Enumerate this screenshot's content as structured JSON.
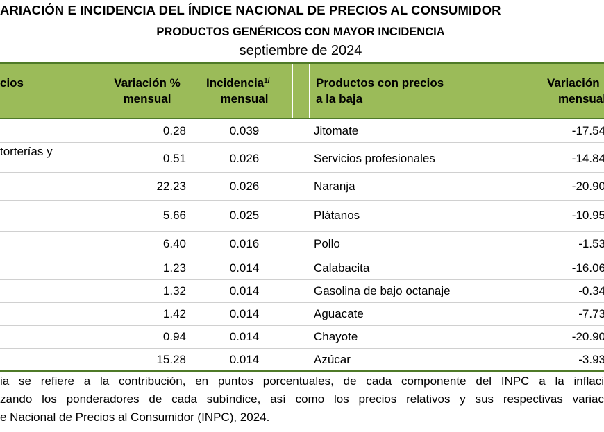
{
  "header": {
    "title": "ARIACIÓN E INCIDENCIA DEL ÍNDICE NACIONAL DE PRECIOS AL CONSUMIDOR",
    "subtitle": "PRODUCTOS GENÉRICOS CON MAYOR INCIDENCIA",
    "period": "septiembre de 2024"
  },
  "table": {
    "columns": {
      "first": "cios",
      "variacion": [
        "Variación %",
        "mensual"
      ],
      "incidencia": [
        "Incidencia",
        "mensual"
      ],
      "incidencia_note": "1/",
      "productos_baja": [
        "Productos con precios",
        "a la baja"
      ],
      "variacion_baja": [
        "Variación",
        "mensual"
      ]
    },
    "first_column_fragment": "torterías y",
    "rows": [
      [
        "0.28",
        "0.039",
        "Jitomate",
        "-17.54"
      ],
      [
        "0.51",
        "0.026",
        "Servicios profesionales",
        "-14.84"
      ],
      [
        "22.23",
        "0.026",
        "Naranja",
        "-20.90"
      ],
      [
        "5.66",
        "0.025",
        "Plátanos",
        "-10.95"
      ],
      [
        "6.40",
        "0.016",
        "Pollo",
        "-1.53"
      ],
      [
        "1.23",
        "0.014",
        "Calabacita",
        "-16.06"
      ],
      [
        "1.32",
        "0.014",
        "Gasolina de bajo octanaje",
        "-0.34"
      ],
      [
        "1.42",
        "0.014",
        "Aguacate",
        "-7.73"
      ],
      [
        "0.94",
        "0.014",
        "Chayote",
        "-20.90"
      ],
      [
        "15.28",
        "0.014",
        "Azúcar",
        "-3.93"
      ]
    ]
  },
  "footnotes": [
    "ia se refiere a la contribución, en puntos porcentuales, de cada componente del INPC a la inflaci",
    "zando los ponderadores de cada subíndice, así como los precios relativos y sus respectivas variac",
    "e Nacional de Precios al Consumidor (INPC), 2024."
  ]
}
